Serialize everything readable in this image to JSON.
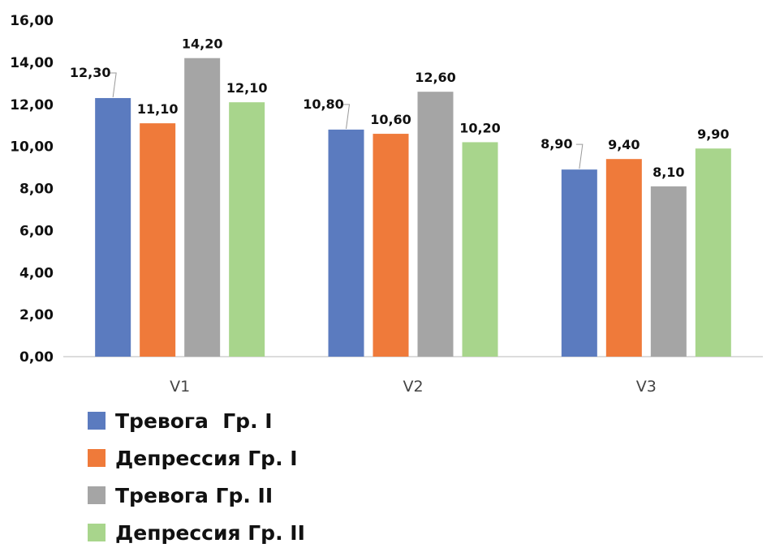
{
  "chart_data": {
    "type": "bar",
    "categories": [
      "V1",
      "V2",
      "V3"
    ],
    "series": [
      {
        "name": "Тревога  Гр. I",
        "color": "#5b7bbf",
        "values": [
          12.3,
          10.8,
          8.9
        ],
        "labels": [
          "12,30",
          "10,80",
          "8,90"
        ]
      },
      {
        "name": "Депрессия Гр. I",
        "color": "#ef7a3a",
        "values": [
          11.1,
          10.6,
          9.4
        ],
        "labels": [
          "11,10",
          "10,60",
          "9,40"
        ]
      },
      {
        "name": "Тревога Гр. II",
        "color": "#a5a5a5",
        "values": [
          14.2,
          12.6,
          8.1
        ],
        "labels": [
          "14,20",
          "12,60",
          "8,10"
        ]
      },
      {
        "name": "Депрессия Гр. II",
        "color": "#a8d58c",
        "values": [
          12.1,
          10.2,
          9.9
        ],
        "labels": [
          "12,10",
          "10,20",
          "9,90"
        ]
      }
    ],
    "ylim": [
      0,
      16
    ],
    "yticks": [
      0,
      2,
      4,
      6,
      8,
      10,
      12,
      14,
      16
    ],
    "ytick_labels": [
      "0,00",
      "2,00",
      "4,00",
      "6,00",
      "8,00",
      "10,00",
      "12,00",
      "14,00",
      "16,00"
    ],
    "grid": false,
    "legend_position": "bottom-left",
    "title": "",
    "xlabel": "",
    "ylabel": ""
  }
}
